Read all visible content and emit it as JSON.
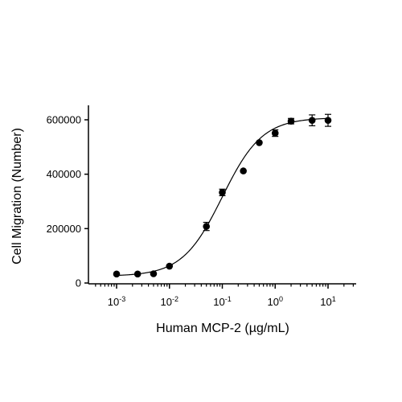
{
  "chart_data": {
    "type": "scatter",
    "xlabel": "Human MCP-2 (µg/mL)",
    "ylabel": "Cell Migration (Number)",
    "x_scale": "log",
    "xlim": [
      0.0005,
      20
    ],
    "ylim": [
      0,
      650000
    ],
    "x_ticks": [
      {
        "value": 0.001,
        "base": "10",
        "exp": "-3"
      },
      {
        "value": 0.01,
        "base": "10",
        "exp": "-2"
      },
      {
        "value": 0.1,
        "base": "10",
        "exp": "-1"
      },
      {
        "value": 1,
        "base": "10",
        "exp": "0"
      },
      {
        "value": 10,
        "base": "10",
        "exp": "1"
      }
    ],
    "y_ticks": [
      {
        "value": 0,
        "label": "0"
      },
      {
        "value": 200000,
        "label": "200000"
      },
      {
        "value": 400000,
        "label": "400000"
      },
      {
        "value": 600000,
        "label": "600000"
      }
    ],
    "points": [
      {
        "x": 0.001,
        "y": 33000,
        "err": 0
      },
      {
        "x": 0.0025,
        "y": 33000,
        "err": 0
      },
      {
        "x": 0.005,
        "y": 34000,
        "err": 0
      },
      {
        "x": 0.01,
        "y": 62000,
        "err": 0
      },
      {
        "x": 0.05,
        "y": 208000,
        "err": 15000
      },
      {
        "x": 0.1,
        "y": 333000,
        "err": 12000
      },
      {
        "x": 0.25,
        "y": 412000,
        "err": 0
      },
      {
        "x": 0.5,
        "y": 516000,
        "err": 0
      },
      {
        "x": 1,
        "y": 551000,
        "err": 12000
      },
      {
        "x": 2,
        "y": 595000,
        "err": 10000
      },
      {
        "x": 5,
        "y": 598000,
        "err": 20000
      },
      {
        "x": 10,
        "y": 598000,
        "err": 22000
      }
    ],
    "fit": {
      "model": "4PL",
      "bottom": 25000,
      "top": 608000,
      "ec50": 0.1,
      "hill": 1.15
    },
    "grid": false,
    "legend": "none"
  }
}
